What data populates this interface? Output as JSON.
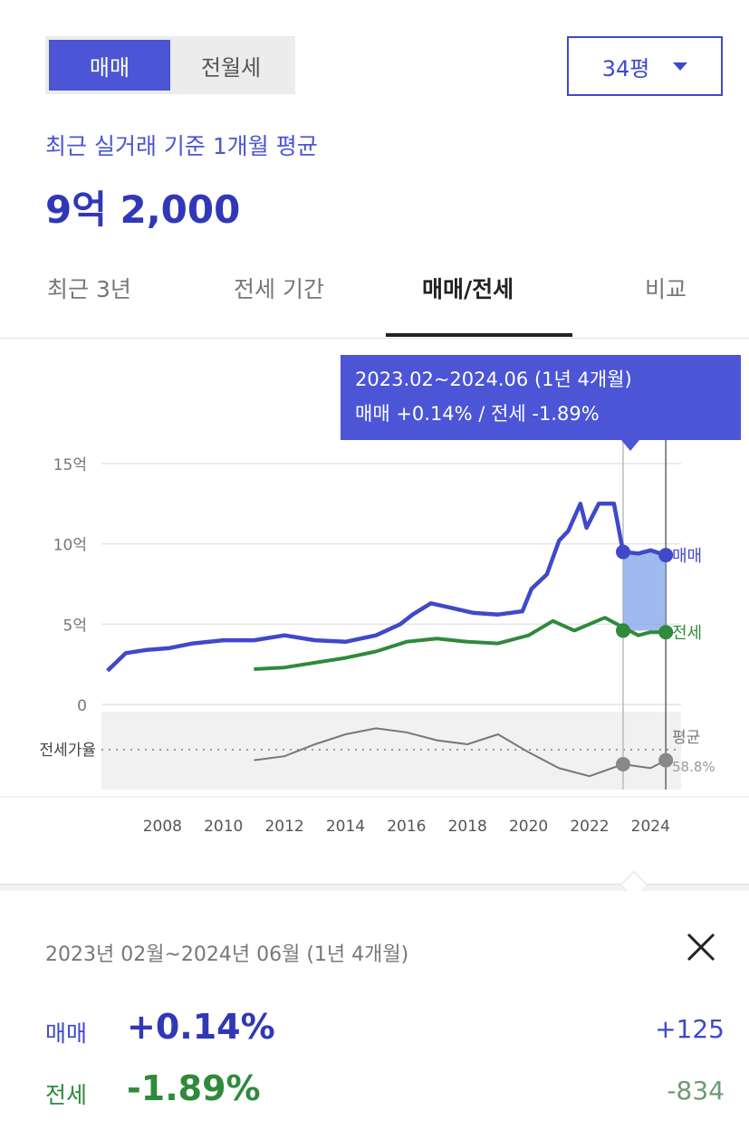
{
  "deal_tabs": [
    "매매",
    "전월세"
  ],
  "size_select": {
    "value": "34평"
  },
  "summary": {
    "caption": "최근 실거래 기준 1개월 평균",
    "value": "9억 2,000"
  },
  "period_tabs": [
    "최근 3년",
    "전세 기간",
    "매매/전세",
    "비교"
  ],
  "tooltip": {
    "line1": "2023.02~2024.06 (1년 4개월)",
    "line2": "매매 +0.14%  /  전세 -1.89%"
  },
  "chart_data": {
    "type": "line",
    "x_ticks": [
      "2008",
      "2010",
      "2012",
      "2014",
      "2016",
      "2018",
      "2020",
      "2022",
      "2024"
    ],
    "y_ticks": [
      "15억",
      "10억",
      "5억",
      "0"
    ],
    "ylim": [
      0,
      15
    ],
    "lower_label": "전세가율",
    "avg_label": "평균",
    "avg_value": "58.8%",
    "series": [
      {
        "name": "매매",
        "color": "#3f49c9",
        "x": [
          2006.2,
          2006.8,
          2007.5,
          2008.2,
          2009,
          2010,
          2011,
          2012,
          2013,
          2014,
          2015,
          2015.8,
          2016.2,
          2016.8,
          2017.5,
          2018.2,
          2019,
          2019.8,
          2020.1,
          2020.6,
          2021.0,
          2021.3,
          2021.7,
          2021.9,
          2022.3,
          2022.8,
          2023.1,
          2023.6,
          2024.0,
          2024.5
        ],
        "y": [
          2.1,
          3.2,
          3.4,
          3.5,
          3.8,
          4.0,
          4.0,
          4.3,
          4.0,
          3.9,
          4.3,
          5.0,
          5.6,
          6.3,
          6.0,
          5.7,
          5.6,
          5.8,
          7.2,
          8.1,
          10.2,
          10.8,
          12.5,
          11.0,
          12.5,
          12.5,
          9.5,
          9.4,
          9.6,
          9.3
        ]
      },
      {
        "name": "전세",
        "color": "#2f8a3c",
        "x": [
          2011,
          2012,
          2013,
          2014,
          2015,
          2016,
          2017,
          2018,
          2019,
          2020,
          2020.8,
          2021.5,
          2022.0,
          2022.5,
          2023.1,
          2023.6,
          2024.0,
          2024.5
        ],
        "y": [
          2.2,
          2.3,
          2.6,
          2.9,
          3.3,
          3.9,
          4.1,
          3.9,
          3.8,
          4.3,
          5.2,
          4.6,
          5.0,
          5.4,
          4.8,
          4.3,
          4.5,
          4.5
        ]
      },
      {
        "name": "전세가율",
        "color": "#777777",
        "x": [
          2011,
          2012,
          2013,
          2014,
          2015,
          2016,
          2017,
          2018,
          2019,
          2020,
          2021,
          2022,
          2023.1,
          2024,
          2024.5
        ],
        "y": [
          52,
          54,
          60,
          65,
          68,
          66,
          62,
          60,
          65,
          56,
          48,
          44,
          50,
          48,
          52
        ]
      }
    ],
    "highlight": {
      "from": 2023.1,
      "to": 2024.5
    }
  },
  "detail": {
    "period": "2023년 02월~2024년 06월 (1년 4개월)",
    "sale": {
      "label": "매매",
      "pct": "+0.14%",
      "abs": "+125"
    },
    "jeonse": {
      "label": "전세",
      "pct": "-1.89%",
      "abs": "-834"
    }
  },
  "colors": {
    "accent": "#4b55d6",
    "sale": "#3f49c9",
    "jeonse": "#2f8a3c"
  }
}
